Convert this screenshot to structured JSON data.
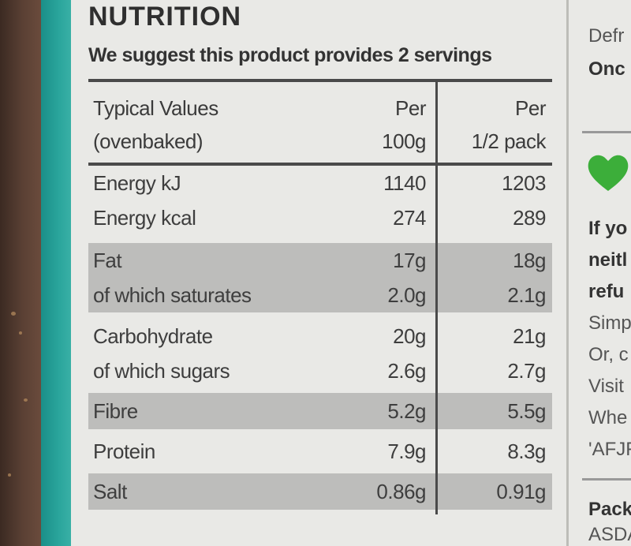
{
  "title": "NUTRITION",
  "servings_note": "We suggest this product provides 2 servings",
  "header": {
    "label_line1": "Typical Values",
    "label_line2": "(ovenbaked)",
    "col1_line1": "Per",
    "col1_line2": "100g",
    "col2_line1": "Per",
    "col2_line2": "1/2 pack"
  },
  "rows": [
    {
      "label": "Energy kJ",
      "per100g": "1140",
      "perhalf": "1203"
    },
    {
      "label": "Energy kcal",
      "per100g": "274",
      "perhalf": "289"
    },
    {
      "label": "Fat",
      "per100g": "17g",
      "perhalf": "18g"
    },
    {
      "label": "of which saturates",
      "per100g": "2.0g",
      "perhalf": "2.1g"
    },
    {
      "label": "Carbohydrate",
      "per100g": "20g",
      "perhalf": "21g"
    },
    {
      "label": "of which sugars",
      "per100g": "2.6g",
      "perhalf": "2.7g"
    },
    {
      "label": "Fibre",
      "per100g": "5.2g",
      "perhalf": "5.5g"
    },
    {
      "label": "Protein",
      "per100g": "7.9g",
      "perhalf": "8.3g"
    },
    {
      "label": "Salt",
      "per100g": "0.86g",
      "perhalf": "0.91g"
    }
  ],
  "sidebar": {
    "top_line1": "Defr",
    "top_line2": "Onc",
    "bold_line1": "If yo",
    "bold_line2": "neitl",
    "bold_line3": "refu",
    "line1": "Simp",
    "line2": "Or, c",
    "line3": "Visit",
    "line4": "Whe",
    "line5": "'AFJF",
    "bottom_line1": "Pack",
    "bottom_line2": "ASDA"
  },
  "colors": {
    "panel": "#e9e9e6",
    "band": "#bdbdbb",
    "teal_edge": "#2aa59c",
    "heart": "#3cae3a"
  }
}
